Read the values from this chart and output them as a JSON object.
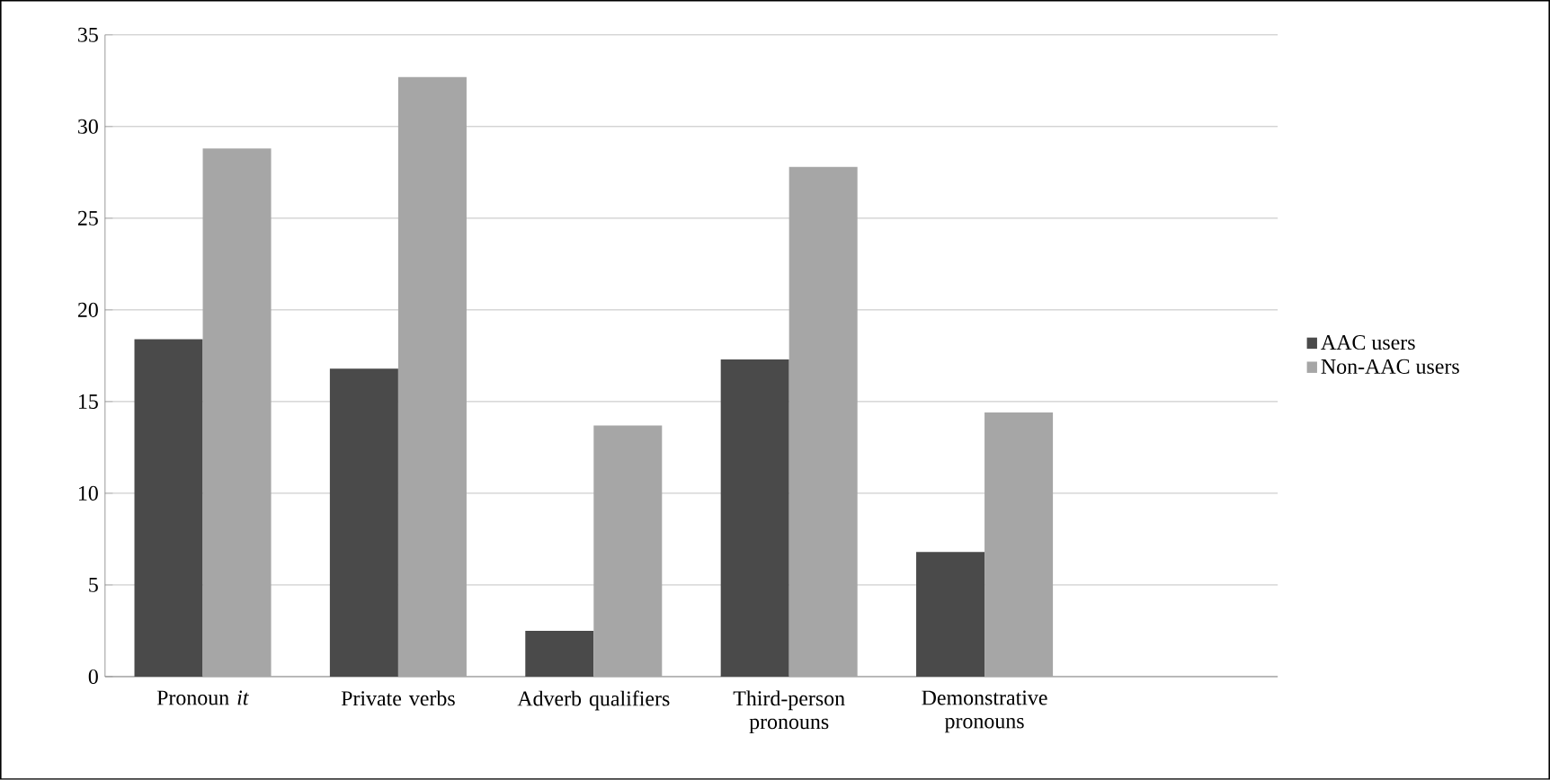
{
  "chart_data": {
    "type": "bar",
    "categories": [
      "Pronoun *it*",
      "Private verbs",
      "Adverb qualifiers",
      "Third-person pronouns",
      "Demonstrative pronouns",
      null
    ],
    "series": [
      {
        "name": "AAC users",
        "color": "#4a4a4a",
        "values": [
          18.4,
          16.8,
          2.5,
          17.3,
          6.8,
          null
        ]
      },
      {
        "name": "Non-AAC users",
        "color": "#a6a6a6",
        "values": [
          28.8,
          32.7,
          13.7,
          27.8,
          14.4,
          null
        ]
      }
    ],
    "ylim": [
      0,
      35
    ],
    "yticks": [
      0,
      5,
      10,
      15,
      20,
      25,
      30,
      35
    ],
    "grid": "y",
    "legend": "right"
  }
}
